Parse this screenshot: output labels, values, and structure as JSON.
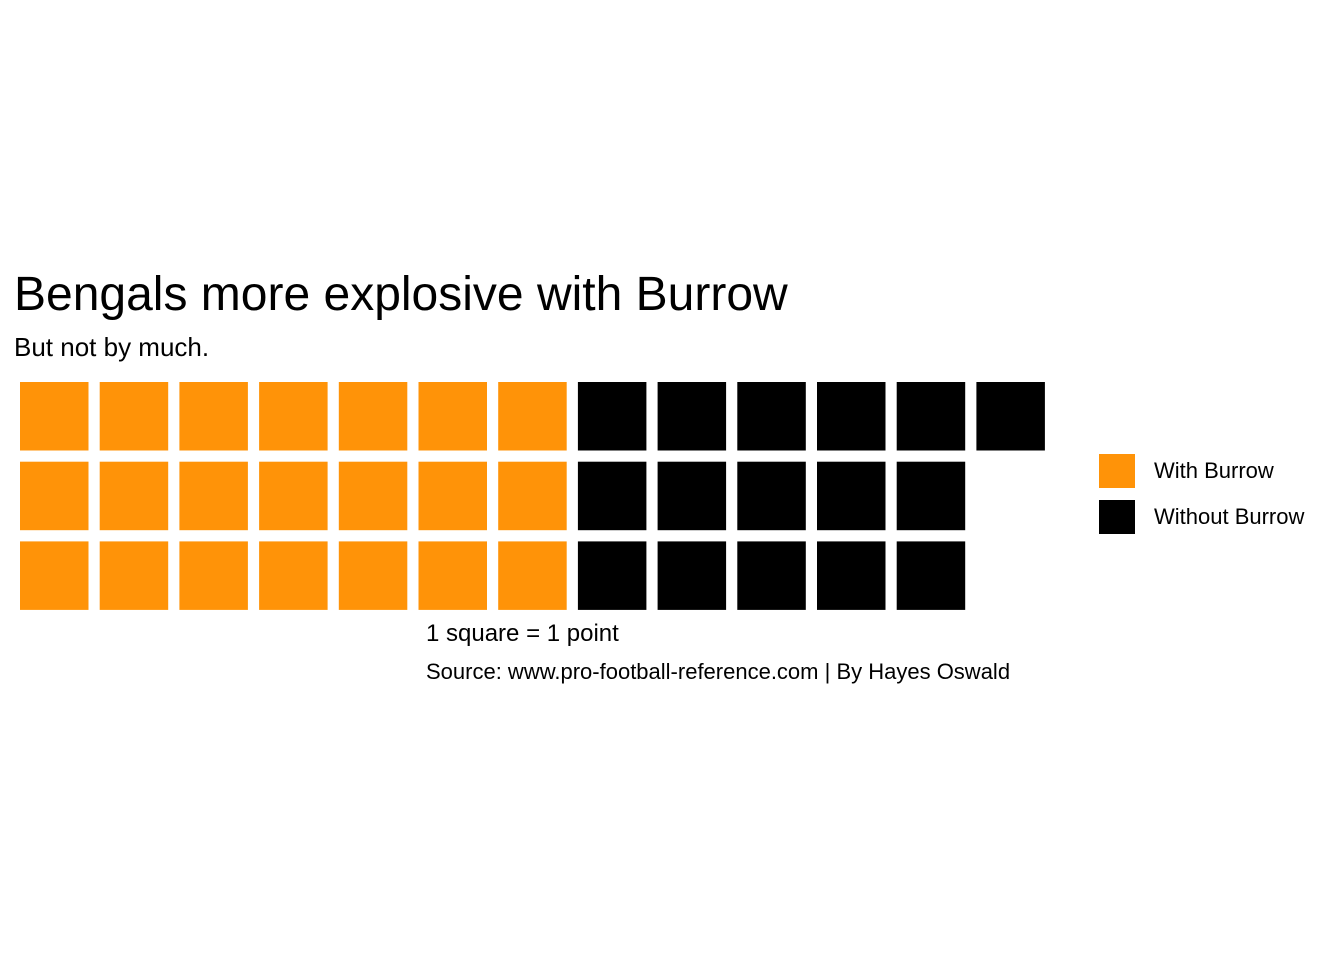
{
  "chart_data": {
    "type": "waffle",
    "title": "Bengals more explosive with Burrow",
    "subtitle": "But not by much.",
    "caption_scale": "1 square = 1 point",
    "caption_source": "Source: www.pro-football-reference.com | By Hayes Oswald",
    "rows": 3,
    "fill_order": "column-major, top to bottom",
    "legend_position": "right",
    "series": [
      {
        "name": "With Burrow",
        "value": 21,
        "color": "#FF9308"
      },
      {
        "name": "Without Burrow",
        "value": 16,
        "color": "#000000"
      }
    ]
  }
}
